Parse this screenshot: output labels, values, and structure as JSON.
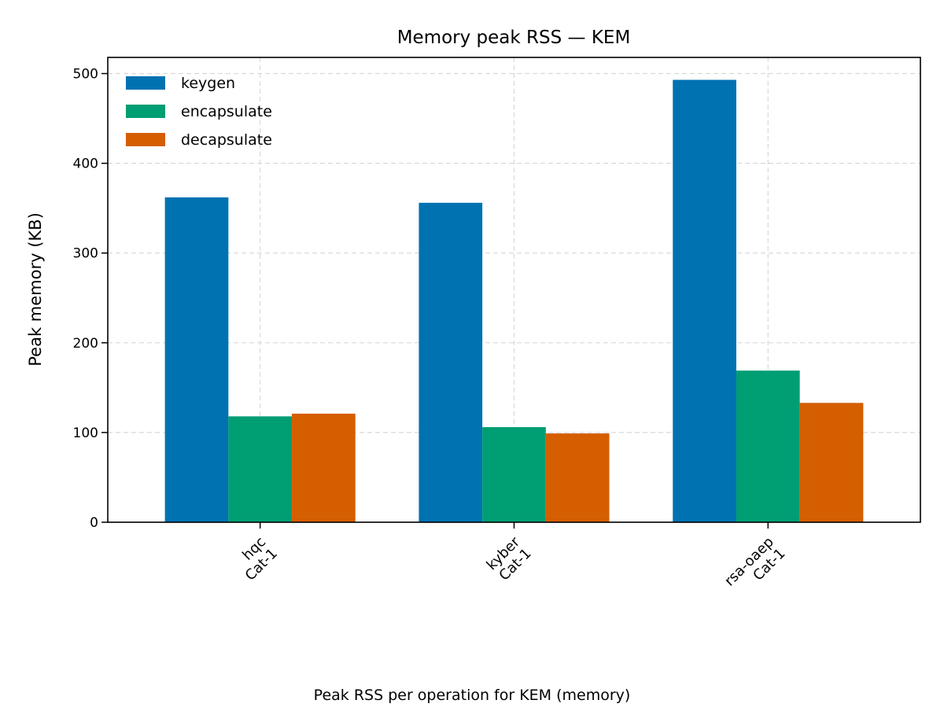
{
  "chart_data": {
    "type": "bar",
    "title": "Memory peak RSS — KEM",
    "xlabel": "",
    "ylabel": "Peak memory (KB)",
    "caption": "Peak RSS per operation for KEM (memory)",
    "categories": [
      [
        "hqc",
        "Cat-1"
      ],
      [
        "kyber",
        "Cat-1"
      ],
      [
        "rsa-oaep",
        "Cat-1"
      ]
    ],
    "series": [
      {
        "name": "keygen",
        "color": "#0072b2",
        "values": [
          362,
          356,
          493
        ]
      },
      {
        "name": "encapsulate",
        "color": "#009e73",
        "values": [
          118,
          106,
          169
        ]
      },
      {
        "name": "decapsulate",
        "color": "#d55e00",
        "values": [
          121,
          99,
          133
        ]
      }
    ],
    "ylim": [
      0,
      518
    ],
    "yticks": [
      0,
      100,
      200,
      300,
      400,
      500
    ],
    "grid": true,
    "legend_position": "top-left"
  }
}
